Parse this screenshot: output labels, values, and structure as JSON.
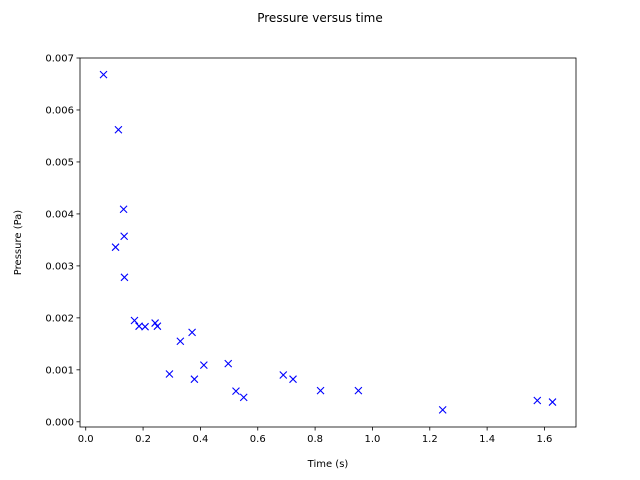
{
  "chart_data": {
    "type": "scatter",
    "title": "Pressure versus time",
    "xlabel": "Time (s)",
    "ylabel": "Pressure (Pa)",
    "xlim": [
      -0.02,
      1.71
    ],
    "ylim": [
      -0.0001,
      0.007
    ],
    "xticks": [
      0.0,
      0.2,
      0.4,
      0.6,
      0.8,
      1.0,
      1.2,
      1.4,
      1.6
    ],
    "xtick_labels": [
      "0.0",
      "0.2",
      "0.4",
      "0.6",
      "0.8",
      "1.0",
      "1.2",
      "1.4",
      "1.6"
    ],
    "yticks": [
      0.0,
      0.001,
      0.002,
      0.003,
      0.004,
      0.005,
      0.006,
      0.007
    ],
    "ytick_labels": [
      "0.000",
      "0.001",
      "0.002",
      "0.003",
      "0.004",
      "0.005",
      "0.006",
      "0.007"
    ],
    "grid": false,
    "marker": "x",
    "marker_color": "#0000ff",
    "points": [
      {
        "x": 0.062,
        "y": 0.00668
      },
      {
        "x": 0.114,
        "y": 0.00562
      },
      {
        "x": 0.132,
        "y": 0.00409
      },
      {
        "x": 0.134,
        "y": 0.00357
      },
      {
        "x": 0.104,
        "y": 0.00336
      },
      {
        "x": 0.135,
        "y": 0.00278
      },
      {
        "x": 0.17,
        "y": 0.00195
      },
      {
        "x": 0.186,
        "y": 0.00184
      },
      {
        "x": 0.207,
        "y": 0.00183
      },
      {
        "x": 0.242,
        "y": 0.0019
      },
      {
        "x": 0.25,
        "y": 0.00184
      },
      {
        "x": 0.292,
        "y": 0.00092
      },
      {
        "x": 0.33,
        "y": 0.00155
      },
      {
        "x": 0.371,
        "y": 0.00172
      },
      {
        "x": 0.379,
        "y": 0.00082
      },
      {
        "x": 0.412,
        "y": 0.00109
      },
      {
        "x": 0.497,
        "y": 0.00112
      },
      {
        "x": 0.524,
        "y": 0.00059
      },
      {
        "x": 0.551,
        "y": 0.00047
      },
      {
        "x": 0.689,
        "y": 0.0009
      },
      {
        "x": 0.723,
        "y": 0.00082
      },
      {
        "x": 0.819,
        "y": 0.0006
      },
      {
        "x": 0.951,
        "y": 0.0006
      },
      {
        "x": 1.245,
        "y": 0.00023
      },
      {
        "x": 1.575,
        "y": 0.00041
      },
      {
        "x": 1.628,
        "y": 0.00038
      }
    ]
  }
}
